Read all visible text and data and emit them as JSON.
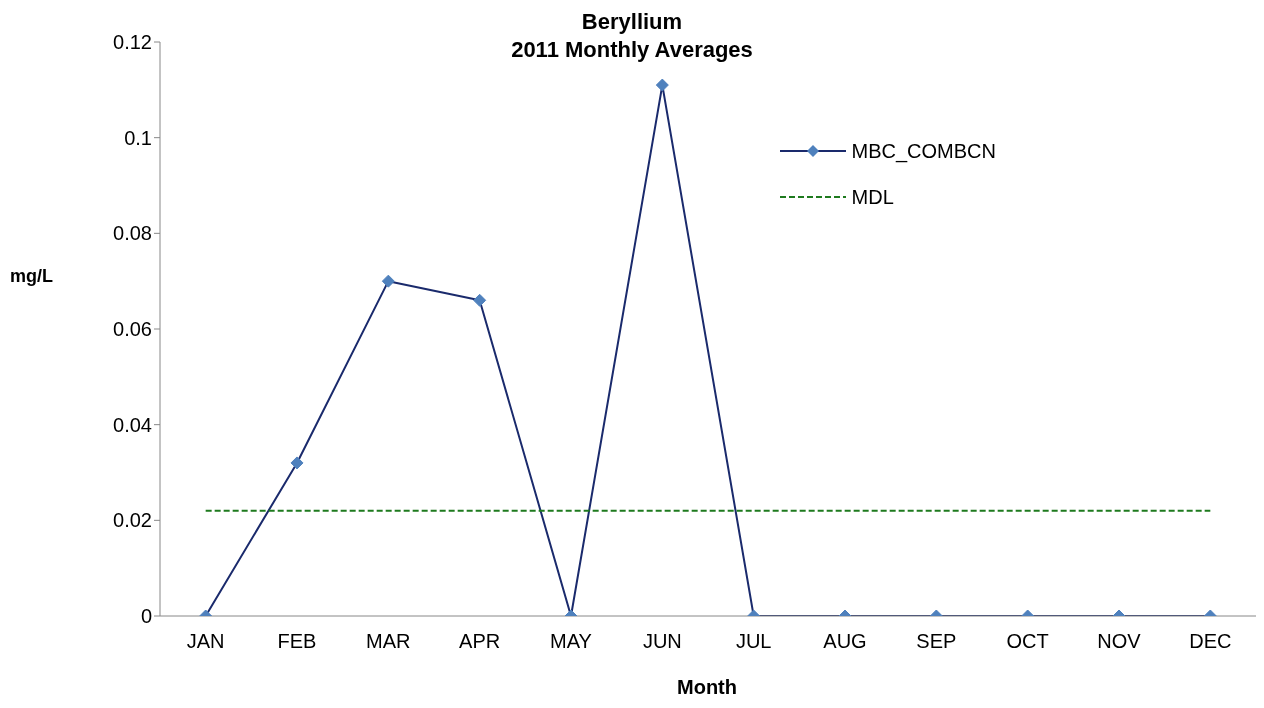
{
  "chart_data": {
    "type": "line",
    "title": "Beryllium",
    "subtitle": "2011 Monthly Averages",
    "xlabel": "Month",
    "ylabel": "mg/L",
    "categories": [
      "JAN",
      "FEB",
      "MAR",
      "APR",
      "MAY",
      "JUN",
      "JUL",
      "AUG",
      "SEP",
      "OCT",
      "NOV",
      "DEC"
    ],
    "series": [
      {
        "name": "MBC_COMBCN",
        "color": "#1a2a6c",
        "marker": "diamond",
        "line_style": "solid",
        "values": [
          0,
          0.032,
          0.07,
          0.066,
          0,
          0.111,
          0,
          0,
          0,
          0,
          0,
          0
        ]
      },
      {
        "name": "MDL",
        "color": "#1e7a1e",
        "marker": "none",
        "line_style": "dashed",
        "values": [
          0.022,
          0.022,
          0.022,
          0.022,
          0.022,
          0.022,
          0.022,
          0.022,
          0.022,
          0.022,
          0.022,
          0.022
        ]
      }
    ],
    "ylim": [
      0,
      0.12
    ],
    "yticks": [
      0,
      0.02,
      0.04,
      0.06,
      0.08,
      0.1,
      0.12
    ],
    "grid": false,
    "legend": "top right"
  }
}
